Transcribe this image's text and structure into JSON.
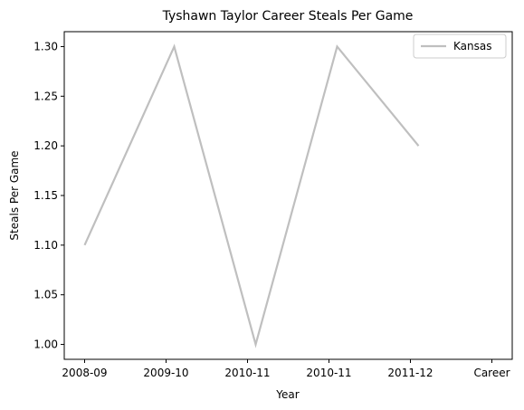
{
  "chart_data": {
    "type": "line",
    "title": "Tyshawn Taylor Career Steals Per Game",
    "xlabel": "Year",
    "ylabel": "Steals Per Game",
    "x_tick_labels": [
      "2008-09",
      "2009-10",
      "2010-11",
      "2010-11",
      "2011-12",
      "Career"
    ],
    "x_positions": [
      0,
      1,
      2,
      3,
      4,
      5
    ],
    "series": [
      {
        "name": "Kansas",
        "color": "#bfbfbf",
        "x": [
          0,
          1.1,
          2.1,
          3.1,
          4.1
        ],
        "values": [
          1.1,
          1.3,
          1.0,
          1.3,
          1.2
        ]
      }
    ],
    "xlim": [
      -0.25,
      5.25
    ],
    "ylim": [
      0.985,
      1.315
    ],
    "y_ticks": [
      1.0,
      1.05,
      1.1,
      1.15,
      1.2,
      1.25,
      1.3
    ],
    "y_tick_labels": [
      "1.00",
      "1.05",
      "1.10",
      "1.15",
      "1.20",
      "1.25",
      "1.30"
    ],
    "grid": false,
    "legend_position": "top-right"
  }
}
